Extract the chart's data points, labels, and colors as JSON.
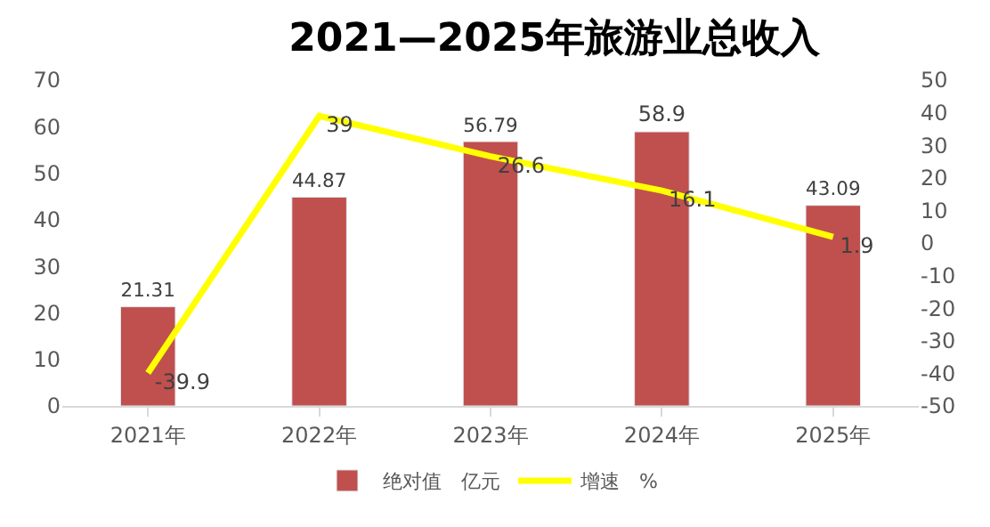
{
  "chart_data": {
    "type": "bar",
    "title": "2021—2025年旅游业总收入",
    "categories": [
      "2021年",
      "2022年",
      "2023年",
      "2024年",
      "2025年"
    ],
    "series": [
      {
        "name": "绝对值　亿元",
        "color": "#c0504d",
        "values": [
          21.31,
          44.87,
          56.79,
          58.9,
          43.09
        ]
      },
      {
        "name": "增速　%",
        "type": "line",
        "axis": "y2",
        "color": "#ffff00",
        "values": [
          -39.9,
          39,
          26.6,
          16.1,
          1.9
        ]
      }
    ],
    "ylim": [
      0,
      70
    ],
    "yticks": [
      0,
      10,
      20,
      30,
      40,
      50,
      60,
      70
    ],
    "y2lim": [
      -50,
      50
    ],
    "y2ticks": [
      -50,
      -40,
      -30,
      -20,
      -10,
      0,
      10,
      20,
      30,
      40,
      50
    ],
    "data_labels": true,
    "legend": "bottom",
    "marker": "none"
  }
}
